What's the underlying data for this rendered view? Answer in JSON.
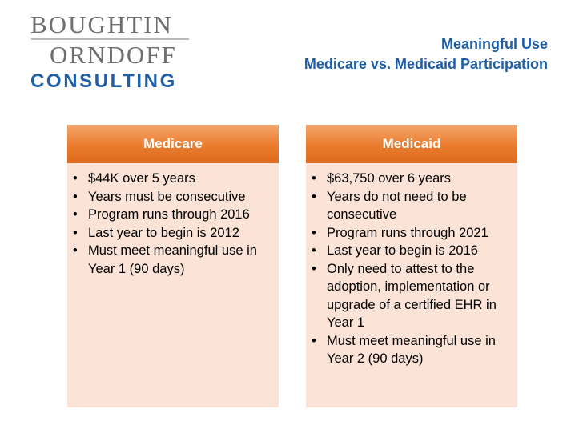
{
  "logo": {
    "line1": "BOUGHTIN",
    "line2": "ORNDOFF",
    "line3": "CONSULTING"
  },
  "title": {
    "line1": "Meaningful Use",
    "line2": "Medicare vs. Medicaid Participation"
  },
  "columns": [
    {
      "header": "Medicare",
      "items": [
        "$44K over 5 years",
        "Years must be consecutive",
        "Program runs through 2016",
        "Last year to begin is 2012",
        "Must meet meaningful use in Year 1 (90 days)"
      ]
    },
    {
      "header": "Medicaid",
      "items": [
        "$63,750 over 6 years",
        "Years do not need to be consecutive",
        "Program runs through 2021",
        "Last year to begin is 2016",
        "Only need to attest to the adoption, implementation or upgrade of a certified EHR in Year 1",
        "Must meet meaningful use in Year 2 (90 days)"
      ]
    }
  ],
  "colors": {
    "title": "#1f5fa8",
    "header_orange": "#ea7c2e",
    "panel_peach": "#fbe3d7",
    "logo_gray": "#6f6f6f"
  }
}
